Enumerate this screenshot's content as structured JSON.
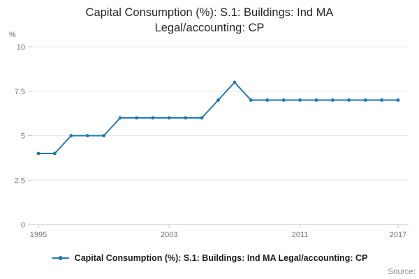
{
  "title": {
    "full": "Capital Consumption (%): S.1: Buildings: Ind MA Legal/accounting: CP",
    "line1": "Capital Consumption (%): S.1: Buildings: Ind MA",
    "line2": "Legal/accounting: CP"
  },
  "legend": {
    "label": "Capital Consumption (%): S.1: Buildings: Ind MA Legal/accounting: CP"
  },
  "footer": {
    "source": "Source:"
  },
  "colors": {
    "line": "#1f77b4",
    "axis_text": "#707070",
    "grid": "#e7e7e7",
    "axis_line": "#c6c6c6"
  },
  "chart_data": {
    "type": "line",
    "title": "Capital Consumption (%): S.1: Buildings: Ind MA Legal/accounting: CP",
    "xlabel": "",
    "ylabel": "%",
    "x": [
      1995,
      1996,
      1997,
      1998,
      1999,
      2000,
      2001,
      2002,
      2003,
      2004,
      2005,
      2006,
      2007,
      2008,
      2009,
      2010,
      2011,
      2012,
      2013,
      2014,
      2015,
      2016,
      2017
    ],
    "series": [
      {
        "name": "Capital Consumption (%): S.1: Buildings: Ind MA Legal/accounting: CP",
        "values": [
          4,
          4,
          5,
          5,
          5,
          6,
          6,
          6,
          6,
          6,
          6,
          7,
          8,
          7,
          7,
          7,
          7,
          7,
          7,
          7,
          7,
          7,
          7
        ]
      }
    ],
    "ylim": [
      0,
      10
    ],
    "yticks": [
      0,
      2.5,
      5,
      7.5,
      10
    ],
    "xticks": [
      1995,
      2003,
      2011,
      2017
    ],
    "grid": "horizontal",
    "legend_position": "bottom",
    "marker": "circle"
  }
}
